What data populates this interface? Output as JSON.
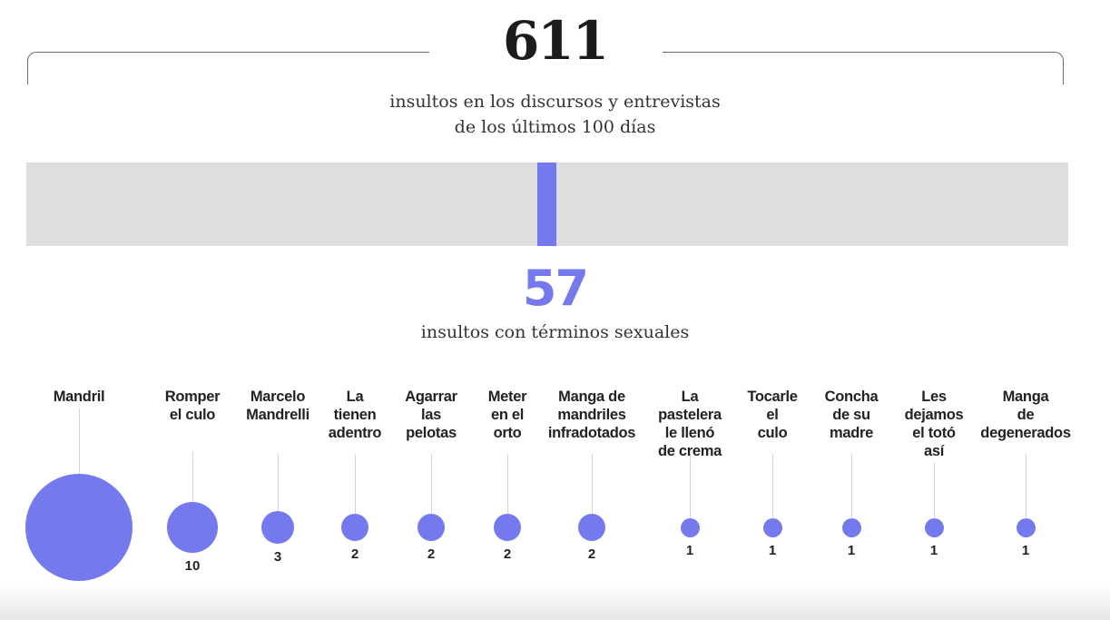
{
  "header": {
    "total": "611",
    "total_caption_line1": "insultos en los discursos y entrevistas",
    "total_caption_line2": "de los últimos 100 días"
  },
  "bar": {
    "total": 611,
    "highlight": 57,
    "track_color": "#dedede",
    "fill_color": "#7579ee"
  },
  "subtotal": {
    "value": "57",
    "caption": "insultos con términos sexuales",
    "color": "#7579ee"
  },
  "items": [
    {
      "label": "Mandril",
      "count": "31"
    },
    {
      "label": "Romper\nel culo",
      "count": "10"
    },
    {
      "label": "Marcelo\nMandrelli",
      "count": "3"
    },
    {
      "label": "La\ntienen\nadentro",
      "count": "2"
    },
    {
      "label": "Agarrar\nlas\npelotas",
      "count": "2"
    },
    {
      "label": "Meter\nen el\norto",
      "count": "2"
    },
    {
      "label": "Manga de\nmandriles\ninfradotados",
      "count": "2"
    },
    {
      "label": "La\npastelera\nle llenó\nde crema",
      "count": "1"
    },
    {
      "label": "Tocarle\nel\nculo",
      "count": "1"
    },
    {
      "label": "Concha\nde su\nmadre",
      "count": "1"
    },
    {
      "label": "Les\ndejamos\nel totó\nasí",
      "count": "1"
    },
    {
      "label": "Manga\nde\ndegenerados",
      "count": "1"
    }
  ],
  "chart_data": {
    "type": "bubble",
    "title": "611 insultos en los discursos y entrevistas de los últimos 100 días",
    "subtitle": "57 insultos con términos sexuales",
    "summary_bar": {
      "total": 611,
      "sexual_terms": 57
    },
    "categories": [
      "Mandril",
      "Romper el culo",
      "Marcelo Mandrelli",
      "La tienen adentro",
      "Agarrar las pelotas",
      "Meter en el orto",
      "Manga de mandriles infradotados",
      "La pastelera le llenó de crema",
      "Tocarle el culo",
      "Concha de su madre",
      "Les dejamos el totó así",
      "Manga de degenerados"
    ],
    "values": [
      31,
      10,
      3,
      2,
      2,
      2,
      2,
      1,
      1,
      1,
      1,
      1
    ],
    "color": "#7579ee"
  }
}
